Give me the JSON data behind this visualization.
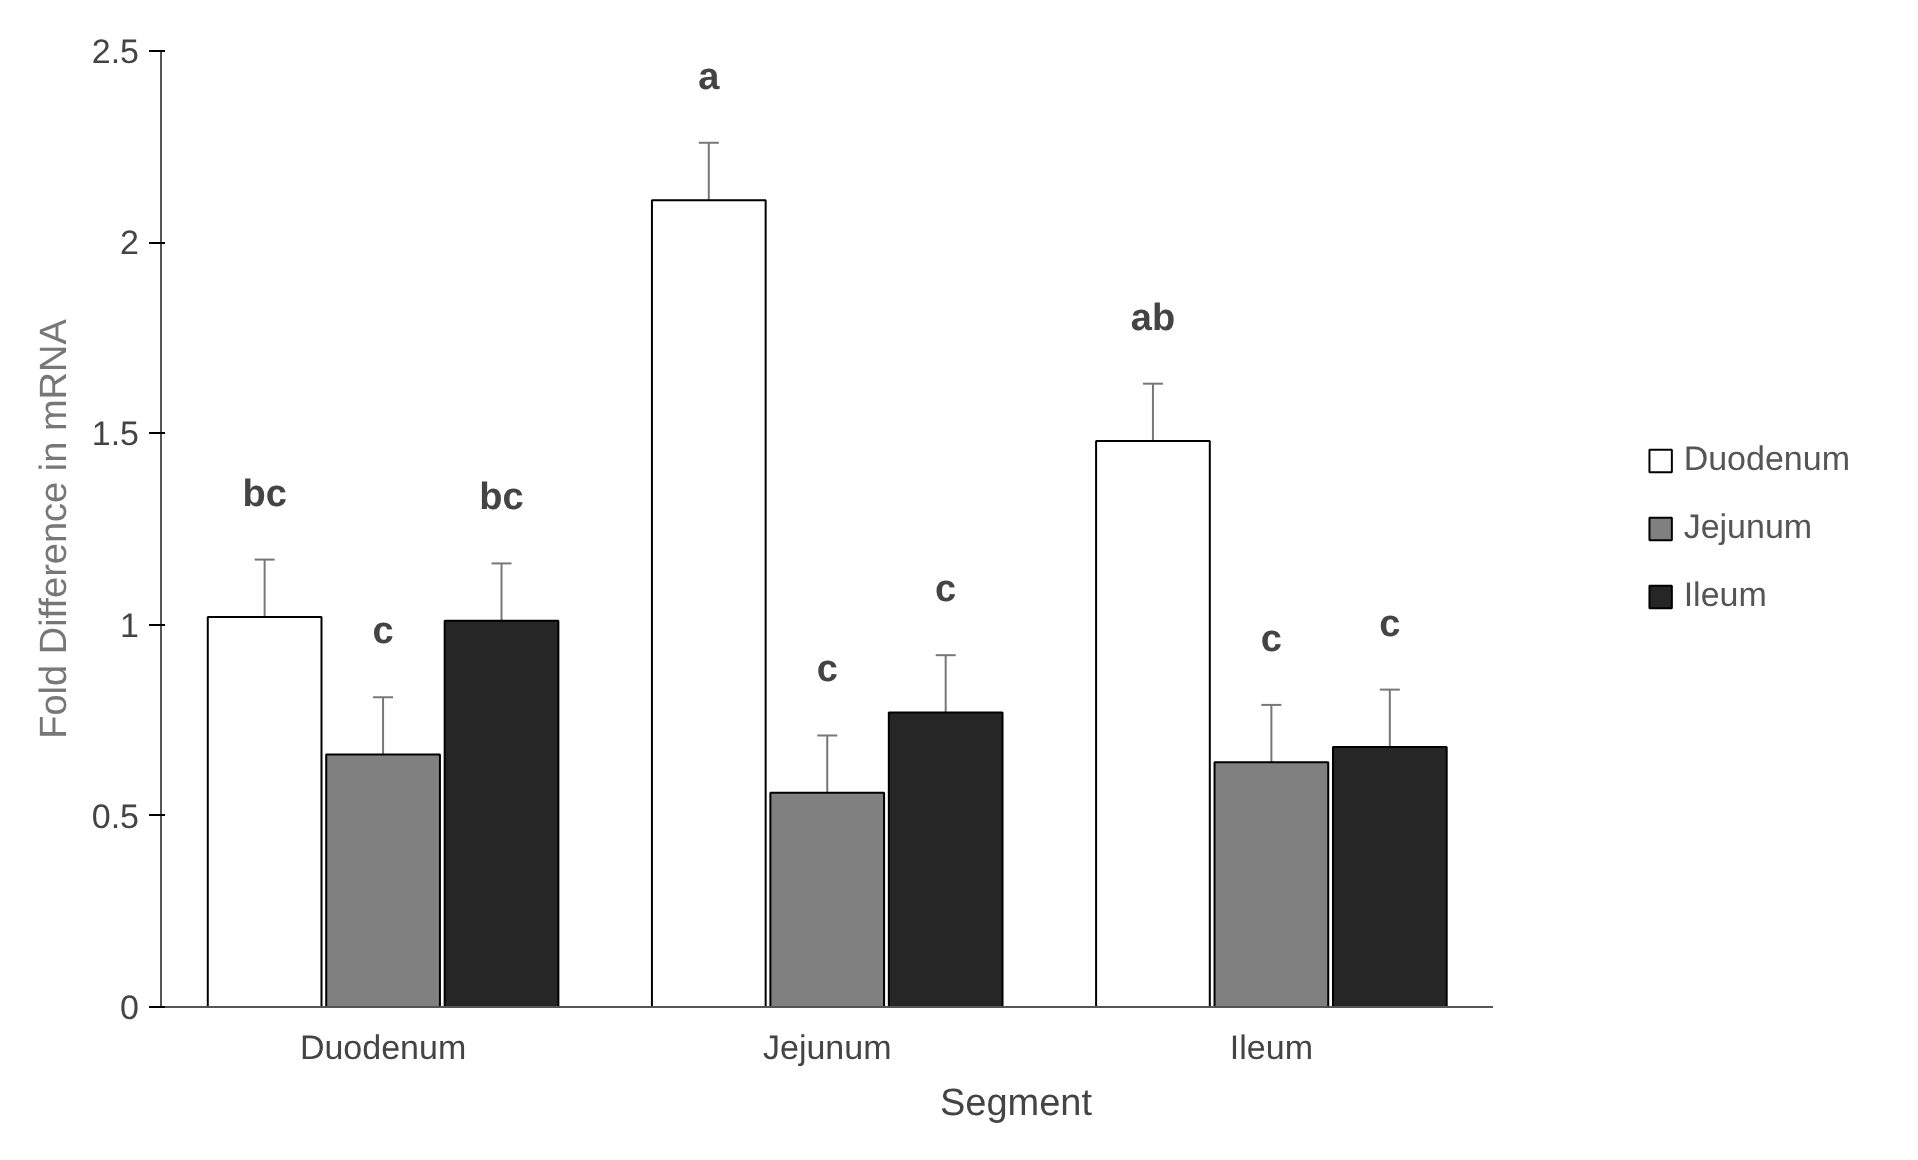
{
  "chart_data": {
    "type": "bar",
    "xlabel": "Segment",
    "ylabel": "Fold Difference in mRNA",
    "categories": [
      "Duodenum",
      "Jejunum",
      "Ileum"
    ],
    "series": [
      {
        "name": "Duodenum",
        "color": "#ffffff",
        "values": [
          1.02,
          2.11,
          1.48
        ],
        "errors": [
          0.15,
          0.15,
          0.15
        ]
      },
      {
        "name": "Jejunum",
        "color": "#808080",
        "values": [
          0.66,
          0.56,
          0.64
        ],
        "errors": [
          0.15,
          0.15,
          0.15
        ]
      },
      {
        "name": "Ileum",
        "color": "#262626",
        "values": [
          1.01,
          0.77,
          0.68
        ],
        "errors": [
          0.15,
          0.15,
          0.15
        ]
      }
    ],
    "annotations": [
      "bc",
      "c",
      "bc",
      "a",
      "c",
      "c",
      "ab",
      "c",
      "c"
    ],
    "ylim": [
      0,
      2.5
    ],
    "yticks": [
      0,
      0.5,
      1,
      1.5,
      2,
      2.5
    ],
    "grid": false,
    "legend": "right"
  }
}
